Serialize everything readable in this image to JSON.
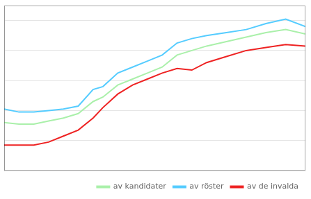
{
  "chart_data": {
    "type": "line",
    "x": [
      1953,
      1956,
      1959,
      1962,
      1965,
      1968,
      1971,
      1973,
      1976,
      1979,
      1982,
      1985,
      1988,
      1991,
      1994,
      1998,
      2002,
      2006,
      2010,
      2014
    ],
    "series": [
      {
        "name": "av kandidater",
        "color": "#aaf0aa",
        "values": [
          16.0,
          15.5,
          15.5,
          16.5,
          17.5,
          19.0,
          23.0,
          24.5,
          28.5,
          30.5,
          32.5,
          34.5,
          38.5,
          40.0,
          41.5,
          43.0,
          44.5,
          46.0,
          47.0,
          45.5
        ]
      },
      {
        "name": "av röster",
        "color": "#55ccff",
        "values": [
          20.5,
          19.5,
          19.5,
          20.0,
          20.5,
          21.5,
          27.0,
          28.0,
          32.5,
          34.5,
          36.5,
          38.5,
          42.5,
          44.0,
          45.0,
          46.0,
          47.0,
          49.0,
          50.5,
          48.0
        ]
      },
      {
        "name": "av de invalda",
        "color": "#ee2222",
        "values": [
          8.5,
          8.5,
          8.5,
          9.5,
          11.5,
          13.5,
          17.5,
          21.0,
          25.5,
          28.5,
          30.5,
          32.5,
          34.0,
          33.5,
          36.0,
          38.0,
          40.0,
          41.0,
          42.0,
          41.5
        ]
      }
    ],
    "xlim": [
      1953,
      2014
    ],
    "xticks": [],
    "ylim": [
      0,
      55
    ],
    "yticks": [
      10,
      20,
      30,
      40,
      50
    ],
    "grid": true,
    "legend": "lower right",
    "tick_labels": false
  }
}
